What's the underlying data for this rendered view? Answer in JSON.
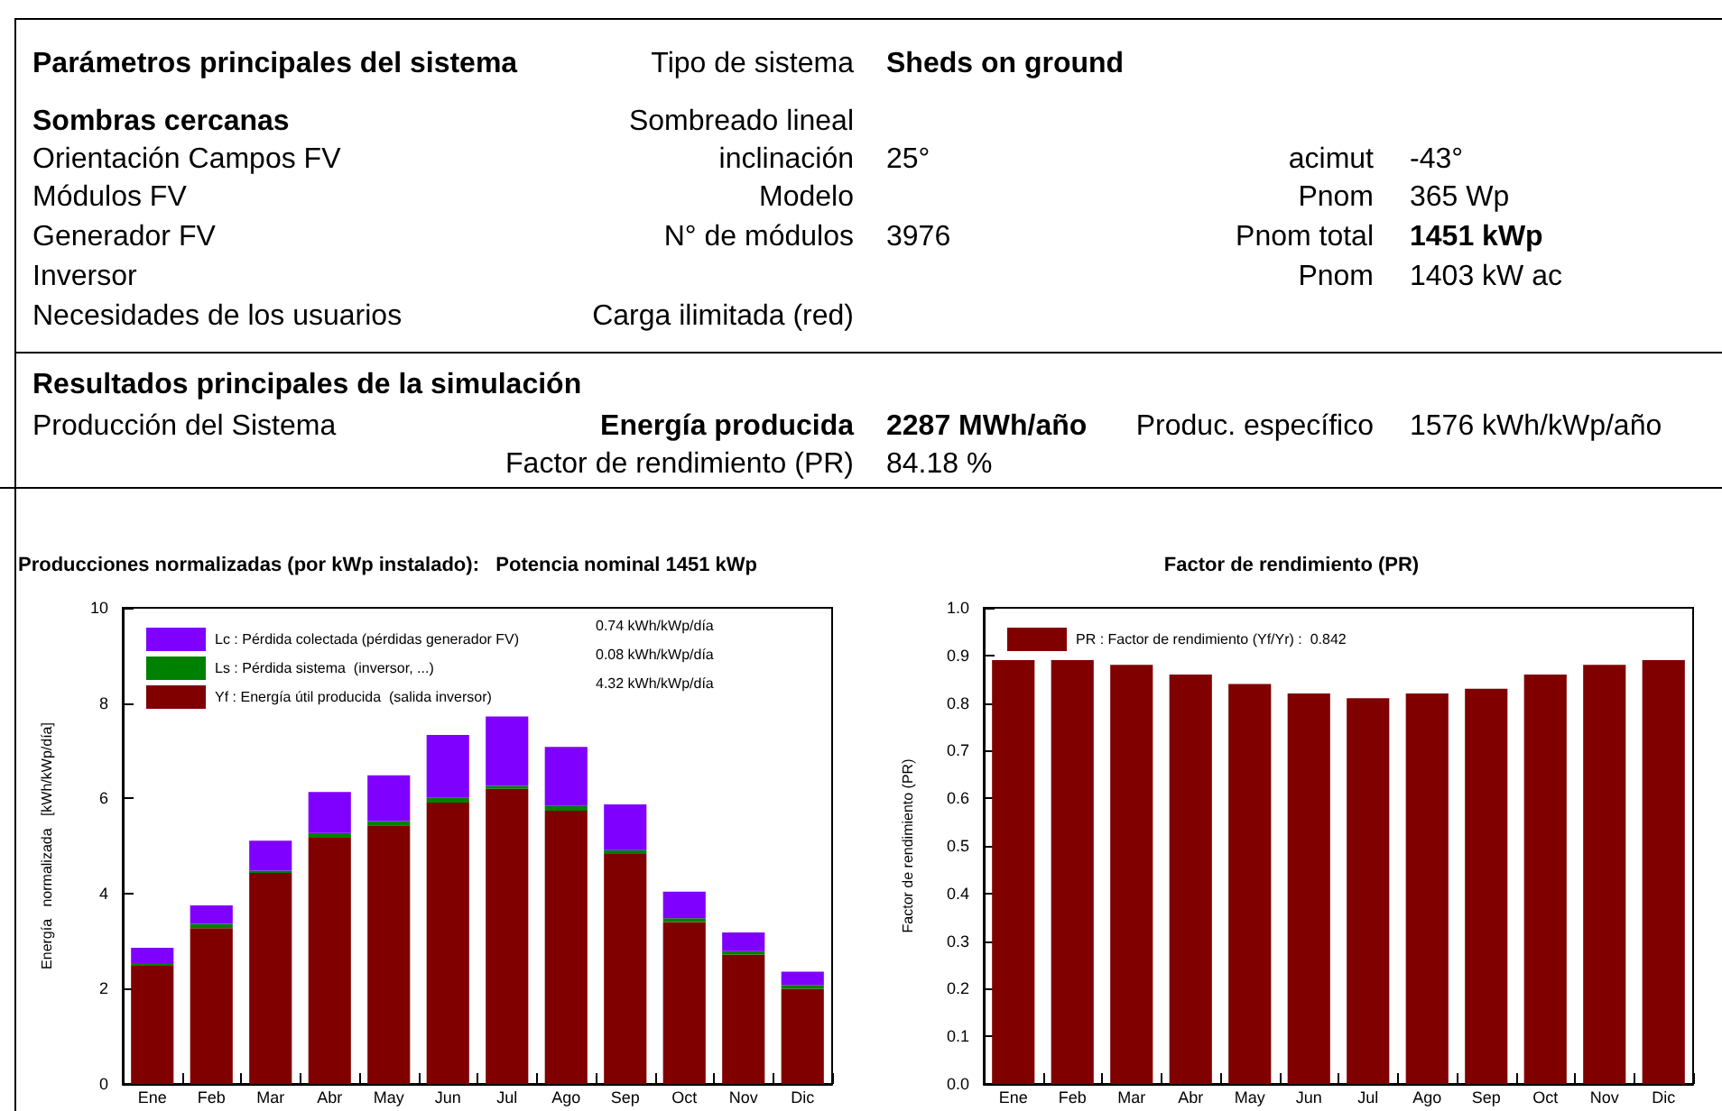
{
  "chart_data": [
    {
      "type": "other",
      "title": "Parámetros principales del sistema",
      "annotations": [
        "Tipo de sistema",
        "Sheds on ground",
        "Sombras cercanas",
        "Sombreado lineal",
        "Orientación Campos FV",
        "inclinación",
        "25°",
        "acimut",
        "-43°",
        "Módulos FV",
        "Modelo",
        "Pnom",
        "365 Wp",
        "Generador FV",
        "N° de módulos",
        "3976",
        "Pnom total",
        "1451 kWp",
        "Inversor",
        "Pnom",
        "1403 kW ac",
        "Necesidades de los usuarios",
        "Carga ilimitada (red)"
      ]
    },
    {
      "type": "other",
      "title": "Resultados principales de la simulación",
      "annotations": [
        "Producción del Sistema",
        "Energía producida",
        "2287 MWh/año",
        "Produc. específico",
        "1576 kWh/kWp/año",
        "Factor de rendimiento (PR)",
        "84.18 %"
      ]
    },
    {
      "type": "bar",
      "title": "Producciones normalizadas (por kWp instalado):   Potencia nominal 1451 kWp",
      "ylabel": "Energía   normalizada   [kWh/kWp/día]",
      "categories": [
        "Ene",
        "Feb",
        "Mar",
        "Abr",
        "May",
        "Jun",
        "Jul",
        "Ago",
        "Sep",
        "Oct",
        "Nov",
        "Dic"
      ],
      "stacked": true,
      "ylim": [
        0,
        10
      ],
      "yticks": [
        0,
        2,
        4,
        6,
        8,
        10
      ],
      "legend": "top left",
      "annotations": [
        "0.74 kWh/kWp/día",
        "0.08 kWh/kWp/día",
        "4.32 kWh/kWp/día"
      ],
      "series": [
        {
          "name": "Yf : Energía útil producida  (salida inversor)",
          "color": "#800000",
          "values": [
            2.48,
            3.27,
            4.43,
            5.17,
            5.43,
            5.91,
            6.2,
            5.74,
            4.83,
            3.4,
            2.72,
            2.0
          ]
        },
        {
          "name": "Ls : Pérdida sistema  (inversor, ...)",
          "color": "#008000",
          "values": [
            0.06,
            0.09,
            0.05,
            0.1,
            0.09,
            0.1,
            0.06,
            0.1,
            0.08,
            0.08,
            0.07,
            0.08
          ]
        },
        {
          "name": "Lc : Pérdida colectada (pérdidas generador FV)",
          "color": "#8000ff",
          "values": [
            0.32,
            0.39,
            0.63,
            0.86,
            0.96,
            1.32,
            1.46,
            1.24,
            0.96,
            0.56,
            0.39,
            0.28
          ]
        }
      ]
    },
    {
      "type": "bar",
      "title": "Factor de rendimiento (PR)",
      "ylabel": "Factor de rendimiento (PR)",
      "categories": [
        "Ene",
        "Feb",
        "Mar",
        "Abr",
        "May",
        "Jun",
        "Jul",
        "Ago",
        "Sep",
        "Oct",
        "Nov",
        "Dic"
      ],
      "ylim": [
        0,
        1
      ],
      "yticks": [
        {
          "value": 0,
          "label": "0.0"
        },
        0.1,
        0.2,
        0.3,
        0.4,
        0.5,
        0.6,
        0.7,
        0.8,
        0.9,
        {
          "value": 1,
          "label": "1.0"
        }
      ],
      "legend": "top left",
      "series": [
        {
          "name": "PR : Factor de rendimiento (Yf/Yr) :  0.842",
          "color": "#800000",
          "values": [
            0.89,
            0.89,
            0.88,
            0.86,
            0.84,
            0.82,
            0.81,
            0.82,
            0.83,
            0.86,
            0.88,
            0.89
          ]
        }
      ]
    }
  ]
}
